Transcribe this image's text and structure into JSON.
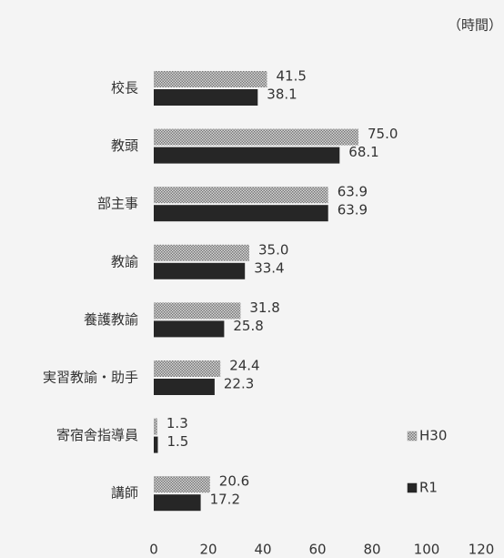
{
  "chart_data": {
    "type": "bar",
    "orientation": "horizontal",
    "unit_label": "（時間）",
    "categories": [
      "校長",
      "教頭",
      "部主事",
      "教諭",
      "養護教諭",
      "実習教諭・助手",
      "寄宿舎指導員",
      "講師"
    ],
    "series": [
      {
        "name": "H30",
        "color": "#9a9a9a",
        "pattern": "hatched",
        "values": [
          41.5,
          75.0,
          63.9,
          35.0,
          31.8,
          24.4,
          1.3,
          20.6
        ],
        "value_labels": [
          "41.5",
          "75.0",
          "63.9",
          "35.0",
          "31.8",
          "24.4",
          "1.3",
          "20.6"
        ]
      },
      {
        "name": "R1",
        "color": "#262626",
        "pattern": "solid",
        "values": [
          38.1,
          68.1,
          63.9,
          33.4,
          25.8,
          22.3,
          1.5,
          17.2
        ],
        "value_labels": [
          "38.1",
          "68.1",
          "63.9",
          "33.4",
          "25.8",
          "22.3",
          "1.5",
          "17.2"
        ]
      }
    ],
    "xlim": [
      0,
      120
    ],
    "xticks": [
      0,
      20,
      40,
      60,
      80,
      100,
      120
    ],
    "grid": false,
    "legend": "right"
  }
}
